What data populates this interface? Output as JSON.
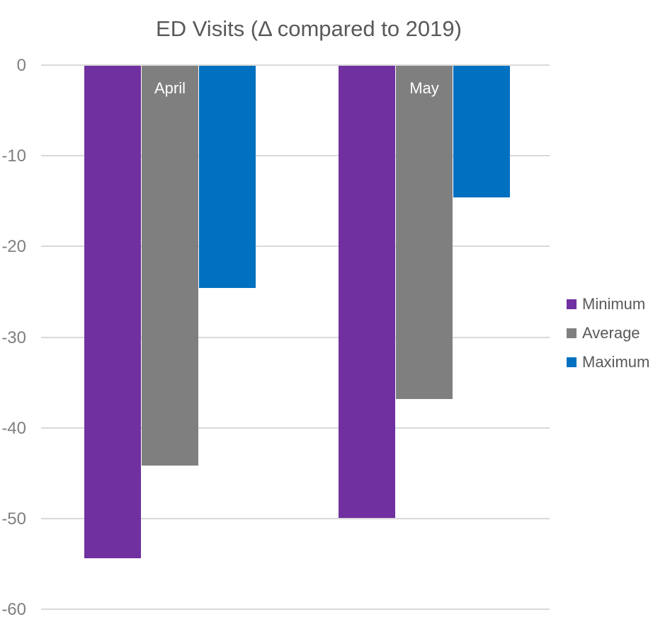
{
  "page": {
    "background_color": "#FFFFFF"
  },
  "chart_data": {
    "type": "bar",
    "title": "ED Visits (Δ compared to 2019)",
    "title_color": "#595959",
    "categories": [
      "April",
      "May"
    ],
    "series": [
      {
        "name": "Minimum",
        "color": "#7030A0",
        "values": [
          -54.4,
          -49.9
        ]
      },
      {
        "name": "Average",
        "color": "#7F7F7F",
        "values": [
          -44.2,
          -36.8
        ]
      },
      {
        "name": "Maximum",
        "color": "#0070C0",
        "values": [
          -24.6,
          -14.6
        ]
      }
    ],
    "xlabel": "",
    "ylabel": "",
    "ylim": [
      -60,
      0
    ],
    "yticks": [
      "0",
      "-10",
      "-20",
      "-30",
      "-40",
      "-50",
      "-60"
    ],
    "ytick_values": [
      0,
      -10,
      -20,
      -30,
      -40,
      -50,
      -60
    ],
    "tick_label_color": "#7F7F7F",
    "grid": true,
    "gridline_color": "#D9D9D9",
    "category_labels_inside_bars": true,
    "category_label_color": "#FFFFFF",
    "legend_position": "right",
    "legend_text_color": "#595959"
  }
}
